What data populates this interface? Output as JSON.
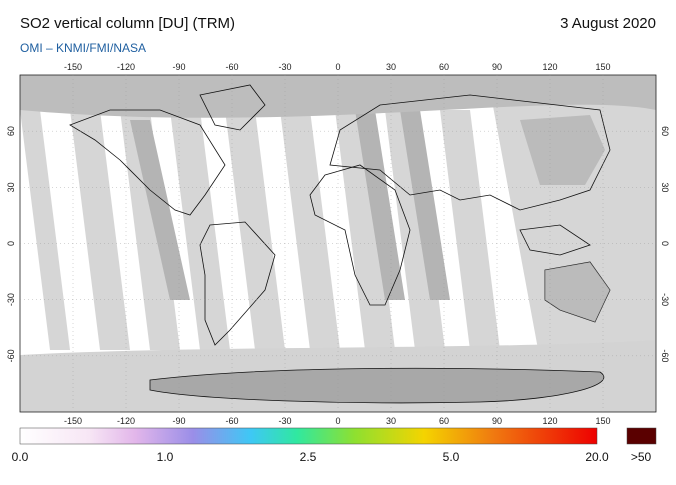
{
  "header": {
    "title": "SO2 vertical column [DU] (TRM)",
    "date": "3 August 2020",
    "credit": "OMI  –  KNMI/FMI/NASA"
  },
  "map": {
    "lon_ticks": [
      -150,
      -120,
      -90,
      -60,
      -30,
      0,
      30,
      60,
      90,
      120,
      150
    ],
    "lat_ticks": [
      60,
      30,
      0,
      -30,
      -60
    ],
    "lon_range": [
      -180,
      180
    ],
    "lat_range": [
      90,
      -90
    ]
  },
  "colorbar": {
    "labels": [
      "0.0",
      "1.0",
      "2.5",
      "5.0",
      "20.0",
      ">50"
    ]
  }
}
